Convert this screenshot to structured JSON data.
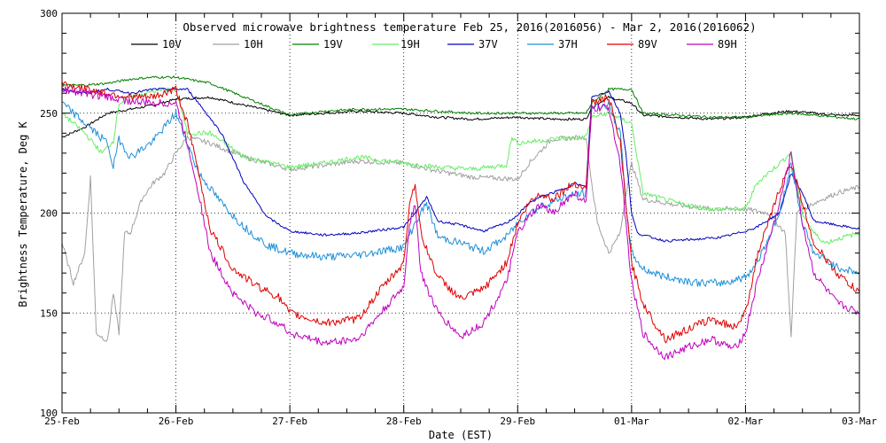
{
  "chart_data": {
    "type": "line",
    "title": "Observed microwave brightness temperature Feb 25, 2016(2016056) - Mar  2, 2016(2016062)",
    "xlabel": "Date (EST)",
    "ylabel": "Brightness Temperature, Deg K",
    "ylim": [
      100,
      300
    ],
    "xlim": [
      0,
      7
    ],
    "y_ticks": [
      100,
      150,
      200,
      250,
      300
    ],
    "x_ticks": [
      {
        "value": 0,
        "label": "25-Feb"
      },
      {
        "value": 1,
        "label": "26-Feb"
      },
      {
        "value": 2,
        "label": "27-Feb"
      },
      {
        "value": 3,
        "label": "28-Feb"
      },
      {
        "value": 4,
        "label": "29-Feb"
      },
      {
        "value": 5,
        "label": "01-Mar"
      },
      {
        "value": 6,
        "label": "02-Mar"
      },
      {
        "value": 7,
        "label": "03-Mar"
      }
    ],
    "grid": true,
    "legend_position": "top",
    "series": [
      {
        "name": "10V",
        "color": "#000000",
        "x": [
          0,
          0.2,
          0.4,
          0.6,
          0.8,
          1.0,
          1.3,
          1.6,
          2.0,
          2.3,
          2.6,
          3.0,
          3.3,
          3.6,
          4.0,
          4.3,
          4.6,
          4.65,
          4.8,
          5.0,
          5.1,
          5.4,
          5.7,
          6.0,
          6.2,
          6.4,
          6.6,
          6.8,
          7.0
        ],
        "values": [
          238,
          243,
          250,
          252,
          254,
          257,
          258,
          254,
          249,
          250,
          251,
          250,
          248,
          247,
          248,
          247,
          247,
          253,
          258,
          255,
          249,
          248,
          247,
          248,
          250,
          251,
          250,
          249,
          249
        ]
      },
      {
        "name": "10H",
        "color": "#a0a0a0",
        "x": [
          0,
          0.1,
          0.2,
          0.25,
          0.3,
          0.4,
          0.45,
          0.5,
          0.55,
          0.6,
          0.7,
          0.8,
          0.9,
          1.0,
          1.1,
          1.3,
          1.6,
          2.0,
          2.3,
          2.6,
          3.0,
          3.3,
          3.6,
          4.0,
          4.1,
          4.3,
          4.6,
          4.65,
          4.7,
          4.8,
          4.9,
          4.95,
          5.0,
          5.1,
          5.4,
          5.7,
          6.0,
          6.2,
          6.35,
          6.4,
          6.45,
          6.6,
          6.8,
          7.0
        ],
        "values": [
          185,
          165,
          180,
          218,
          140,
          136,
          160,
          140,
          190,
          190,
          207,
          215,
          220,
          230,
          238,
          235,
          228,
          222,
          224,
          226,
          225,
          221,
          218,
          217,
          225,
          237,
          238,
          215,
          195,
          180,
          190,
          210,
          225,
          207,
          204,
          202,
          202,
          200,
          190,
          137,
          200,
          205,
          210,
          213
        ]
      },
      {
        "name": "19V",
        "color": "#008000",
        "x": [
          0,
          0.2,
          0.4,
          0.6,
          0.8,
          1.0,
          1.3,
          1.6,
          2.0,
          2.3,
          2.6,
          3.0,
          3.3,
          3.6,
          4.0,
          4.3,
          4.6,
          4.65,
          4.8,
          5.0,
          5.1,
          5.4,
          5.7,
          6.0,
          6.2,
          6.4,
          6.6,
          6.8,
          7.0
        ],
        "values": [
          264,
          264,
          265,
          267,
          268,
          268,
          265,
          258,
          249,
          251,
          252,
          252,
          251,
          250,
          250,
          250,
          250,
          255,
          262,
          262,
          250,
          249,
          248,
          248,
          249,
          250,
          249,
          248,
          247
        ]
      },
      {
        "name": "19H",
        "color": "#66ee66",
        "x": [
          0,
          0.2,
          0.35,
          0.45,
          0.5,
          0.6,
          0.8,
          1.0,
          1.1,
          1.3,
          1.6,
          2.0,
          2.3,
          2.6,
          3.0,
          3.3,
          3.6,
          3.9,
          3.95,
          4.0,
          4.3,
          4.6,
          4.65,
          4.8,
          5.0,
          5.1,
          5.4,
          5.7,
          6.0,
          6.1,
          6.3,
          6.4,
          6.5,
          6.6,
          6.7,
          6.8,
          7.0
        ],
        "values": [
          250,
          240,
          230,
          236,
          255,
          258,
          261,
          262,
          240,
          240,
          228,
          223,
          225,
          228,
          225,
          223,
          222,
          224,
          238,
          235,
          237,
          238,
          248,
          250,
          245,
          210,
          205,
          202,
          202,
          215,
          225,
          230,
          200,
          190,
          185,
          187,
          190
        ]
      },
      {
        "name": "37V",
        "color": "#0000c0",
        "x": [
          0,
          0.2,
          0.4,
          0.6,
          0.8,
          1.0,
          1.1,
          1.2,
          1.4,
          1.6,
          1.8,
          2.0,
          2.3,
          2.6,
          3.0,
          3.1,
          3.2,
          3.3,
          3.5,
          3.7,
          3.9,
          4.0,
          4.1,
          4.2,
          4.4,
          4.5,
          4.6,
          4.65,
          4.8,
          4.9,
          4.95,
          5.0,
          5.05,
          5.1,
          5.3,
          5.6,
          5.8,
          6.0,
          6.1,
          6.3,
          6.4,
          6.5,
          6.6,
          6.8,
          7.0
        ],
        "values": [
          262,
          260,
          262,
          260,
          262,
          262,
          262,
          255,
          240,
          215,
          198,
          191,
          189,
          190,
          193,
          200,
          208,
          196,
          194,
          191,
          195,
          199,
          205,
          208,
          212,
          215,
          213,
          258,
          261,
          250,
          230,
          200,
          190,
          189,
          186,
          187,
          188,
          191,
          193,
          200,
          220,
          210,
          196,
          194,
          192
        ]
      },
      {
        "name": "37H",
        "color": "#1e90d8",
        "x": [
          0,
          0.2,
          0.4,
          0.45,
          0.5,
          0.6,
          0.8,
          1.0,
          1.1,
          1.2,
          1.4,
          1.6,
          1.8,
          2.0,
          2.3,
          2.6,
          3.0,
          3.1,
          3.2,
          3.3,
          3.5,
          3.7,
          3.9,
          4.0,
          4.1,
          4.2,
          4.4,
          4.6,
          4.65,
          4.8,
          4.9,
          4.95,
          5.0,
          5.1,
          5.3,
          5.6,
          5.8,
          6.0,
          6.1,
          6.3,
          6.4,
          6.5,
          6.6,
          6.8,
          7.0
        ],
        "values": [
          255,
          245,
          235,
          223,
          237,
          228,
          236,
          250,
          235,
          220,
          205,
          193,
          184,
          180,
          178,
          179,
          183,
          195,
          205,
          188,
          185,
          181,
          188,
          195,
          200,
          203,
          208,
          210,
          253,
          254,
          240,
          205,
          180,
          172,
          168,
          165,
          165,
          168,
          175,
          200,
          225,
          195,
          180,
          173,
          170
        ]
      },
      {
        "name": "89V",
        "color": "#e00000",
        "x": [
          0,
          0.2,
          0.4,
          0.6,
          0.8,
          1.0,
          1.1,
          1.2,
          1.3,
          1.5,
          1.7,
          1.9,
          2.0,
          2.3,
          2.6,
          2.8,
          3.0,
          3.05,
          3.1,
          3.15,
          3.2,
          3.3,
          3.5,
          3.7,
          3.9,
          4.0,
          4.1,
          4.2,
          4.3,
          4.5,
          4.6,
          4.65,
          4.8,
          4.9,
          5.0,
          5.1,
          5.2,
          5.3,
          5.5,
          5.7,
          5.9,
          6.0,
          6.1,
          6.3,
          6.4,
          6.5,
          6.6,
          6.8,
          7.0
        ],
        "values": [
          265,
          262,
          260,
          258,
          258,
          262,
          245,
          220,
          192,
          172,
          164,
          158,
          150,
          145,
          147,
          162,
          175,
          205,
          215,
          190,
          182,
          168,
          157,
          162,
          175,
          195,
          205,
          210,
          207,
          215,
          212,
          255,
          258,
          235,
          175,
          155,
          145,
          137,
          142,
          147,
          143,
          150,
          178,
          212,
          225,
          205,
          185,
          170,
          160
        ]
      },
      {
        "name": "89H",
        "color": "#c000c0",
        "x": [
          0,
          0.2,
          0.4,
          0.6,
          0.8,
          1.0,
          1.1,
          1.2,
          1.3,
          1.5,
          1.7,
          1.9,
          2.0,
          2.3,
          2.6,
          2.8,
          3.0,
          3.05,
          3.1,
          3.15,
          3.2,
          3.3,
          3.5,
          3.7,
          3.9,
          4.0,
          4.1,
          4.2,
          4.3,
          4.5,
          4.6,
          4.65,
          4.8,
          4.9,
          5.0,
          5.1,
          5.2,
          5.3,
          5.5,
          5.7,
          5.9,
          6.0,
          6.1,
          6.3,
          6.4,
          6.5,
          6.6,
          6.8,
          7.0
        ],
        "values": [
          262,
          260,
          258,
          256,
          255,
          255,
          235,
          210,
          180,
          160,
          150,
          145,
          140,
          135,
          137,
          150,
          163,
          195,
          205,
          170,
          163,
          150,
          138,
          145,
          165,
          190,
          198,
          204,
          200,
          210,
          205,
          252,
          253,
          225,
          165,
          140,
          133,
          128,
          133,
          137,
          132,
          140,
          165,
          205,
          230,
          195,
          170,
          155,
          150
        ]
      }
    ]
  }
}
